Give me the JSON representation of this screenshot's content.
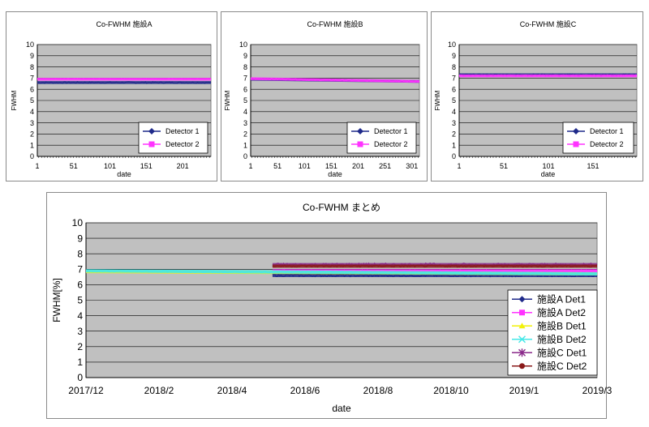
{
  "colors": {
    "plot_bg": "#c0c0c0",
    "grid": "#000000",
    "detA1": "#1f2a8a",
    "detA2": "#ff33ff",
    "detB1": "#f2f20a",
    "detB2": "#44e8e8",
    "detC1": "#8a2a8a",
    "detC2": "#8a1a1a"
  },
  "chart_data": [
    {
      "type": "line",
      "title": "Co-FWHM 施設A",
      "xlabel": "date",
      "ylabel": "FWHM",
      "ylim": [
        0,
        10
      ],
      "yticks": [
        "0",
        "1",
        "2",
        "3",
        "4",
        "5",
        "6",
        "7",
        "8",
        "9",
        "10"
      ],
      "x_range": [
        1,
        240
      ],
      "xticks": [
        "1",
        "51",
        "101",
        "151",
        "201"
      ],
      "legend_position": "bottom-right",
      "series": [
        {
          "name": "Detector 1",
          "level": 6.6,
          "noise": 0.08,
          "color": "#1f2a8a"
        },
        {
          "name": "Detector 2",
          "level": 6.9,
          "noise": 0.07,
          "color": "#ff33ff"
        }
      ]
    },
    {
      "type": "line",
      "title": "Co-FWHM 施設B",
      "xlabel": "date",
      "ylabel": "FWHM",
      "ylim": [
        0,
        10
      ],
      "yticks": [
        "0",
        "1",
        "2",
        "3",
        "4",
        "5",
        "6",
        "7",
        "8",
        "9",
        "10"
      ],
      "x_range": [
        1,
        315
      ],
      "xticks": [
        "1",
        "51",
        "101",
        "151",
        "201",
        "251",
        "301"
      ],
      "legend_position": "bottom-right",
      "series": [
        {
          "name": "Detector 1",
          "level_start": 6.9,
          "level_end": 6.7,
          "noise": 0.05,
          "color": "#1f2a8a"
        },
        {
          "name": "Detector 2",
          "level_start": 6.95,
          "level_end": 6.7,
          "noise": 0.06,
          "color": "#ff33ff"
        }
      ]
    },
    {
      "type": "line",
      "title": "Co-FWHM 施設C",
      "xlabel": "date",
      "ylabel": "FWHM",
      "ylim": [
        0,
        10
      ],
      "yticks": [
        "0",
        "1",
        "2",
        "3",
        "4",
        "5",
        "6",
        "7",
        "8",
        "9",
        "10"
      ],
      "x_range": [
        1,
        200
      ],
      "xticks": [
        "1",
        "51",
        "101",
        "151"
      ],
      "legend_position": "bottom-right",
      "series": [
        {
          "name": "Detector 1",
          "level": 7.3,
          "noise": 0.08,
          "color": "#1f2a8a"
        },
        {
          "name": "Detector 2",
          "level": 7.2,
          "noise": 0.07,
          "color": "#ff33ff"
        }
      ]
    },
    {
      "type": "line",
      "title": "Co-FWHM まとめ",
      "xlabel": "date",
      "ylabel": "FWHM[%]",
      "ylim": [
        0,
        10
      ],
      "yticks": [
        "0",
        "1",
        "2",
        "3",
        "4",
        "5",
        "6",
        "7",
        "8",
        "9",
        "10"
      ],
      "xticks": [
        "2017/12",
        "2018/2",
        "2018/4",
        "2018/6",
        "2018/8",
        "2018/10",
        "2019/1",
        "2019/3"
      ],
      "legend_position": "bottom-right",
      "series": [
        {
          "name": "施設A Det1",
          "marker": "diamond",
          "start": 0.365,
          "end": 1.0,
          "level": 6.6,
          "noise": 0.08,
          "color": "#1f2a8a"
        },
        {
          "name": "施設A Det2",
          "marker": "square",
          "start": 0.365,
          "end": 1.0,
          "level": 6.9,
          "noise": 0.07,
          "color": "#ff33ff"
        },
        {
          "name": "施設B Det1",
          "marker": "triangle",
          "start": 0.0,
          "end": 1.0,
          "level": 6.85,
          "level_end": 6.7,
          "noise": 0.05,
          "color": "#f2f20a"
        },
        {
          "name": "施設B Det2",
          "marker": "x",
          "start": 0.0,
          "end": 1.0,
          "level": 6.9,
          "level_end": 6.7,
          "noise": 0.06,
          "color": "#44e8e8"
        },
        {
          "name": "施設C Det1",
          "marker": "star",
          "start": 0.365,
          "end": 1.0,
          "level": 7.3,
          "noise": 0.1,
          "color": "#8a2a8a"
        },
        {
          "name": "施設C Det2",
          "marker": "circle",
          "start": 0.365,
          "end": 1.0,
          "level": 7.2,
          "noise": 0.07,
          "color": "#8a1a1a"
        }
      ]
    }
  ]
}
